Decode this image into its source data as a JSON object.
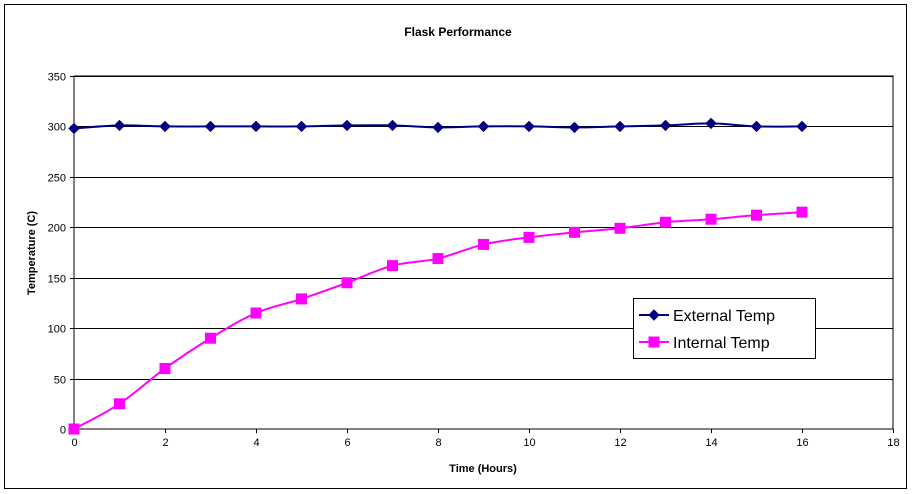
{
  "chart_data": {
    "type": "line",
    "title": "Flask Performance",
    "xlabel": "Time (Hours)",
    "ylabel": "Temperature (C)",
    "xlim": [
      0,
      18
    ],
    "ylim": [
      0,
      350
    ],
    "xticks": [
      0,
      2,
      4,
      6,
      8,
      10,
      12,
      14,
      16,
      18
    ],
    "yticks": [
      0,
      50,
      100,
      150,
      200,
      250,
      300,
      350
    ],
    "grid": "horizontal",
    "legend_position": "right",
    "series": [
      {
        "name": "External Temp",
        "color": "#000080",
        "marker": "diamond",
        "x": [
          0,
          1,
          2,
          3,
          4,
          5,
          6,
          7,
          8,
          9,
          10,
          11,
          12,
          13,
          14,
          15,
          16
        ],
        "y": [
          298,
          301,
          300,
          300,
          300,
          300,
          301,
          301,
          299,
          300,
          300,
          299,
          300,
          301,
          303,
          300,
          300
        ]
      },
      {
        "name": "Internal Temp",
        "color": "#ff00ff",
        "marker": "square",
        "x": [
          0,
          1,
          2,
          3,
          4,
          5,
          6,
          7,
          8,
          9,
          10,
          11,
          12,
          13,
          14,
          15,
          16
        ],
        "y": [
          0,
          25,
          60,
          90,
          115,
          129,
          145,
          162,
          169,
          183,
          190,
          195,
          199,
          205,
          208,
          212,
          215
        ]
      }
    ]
  }
}
